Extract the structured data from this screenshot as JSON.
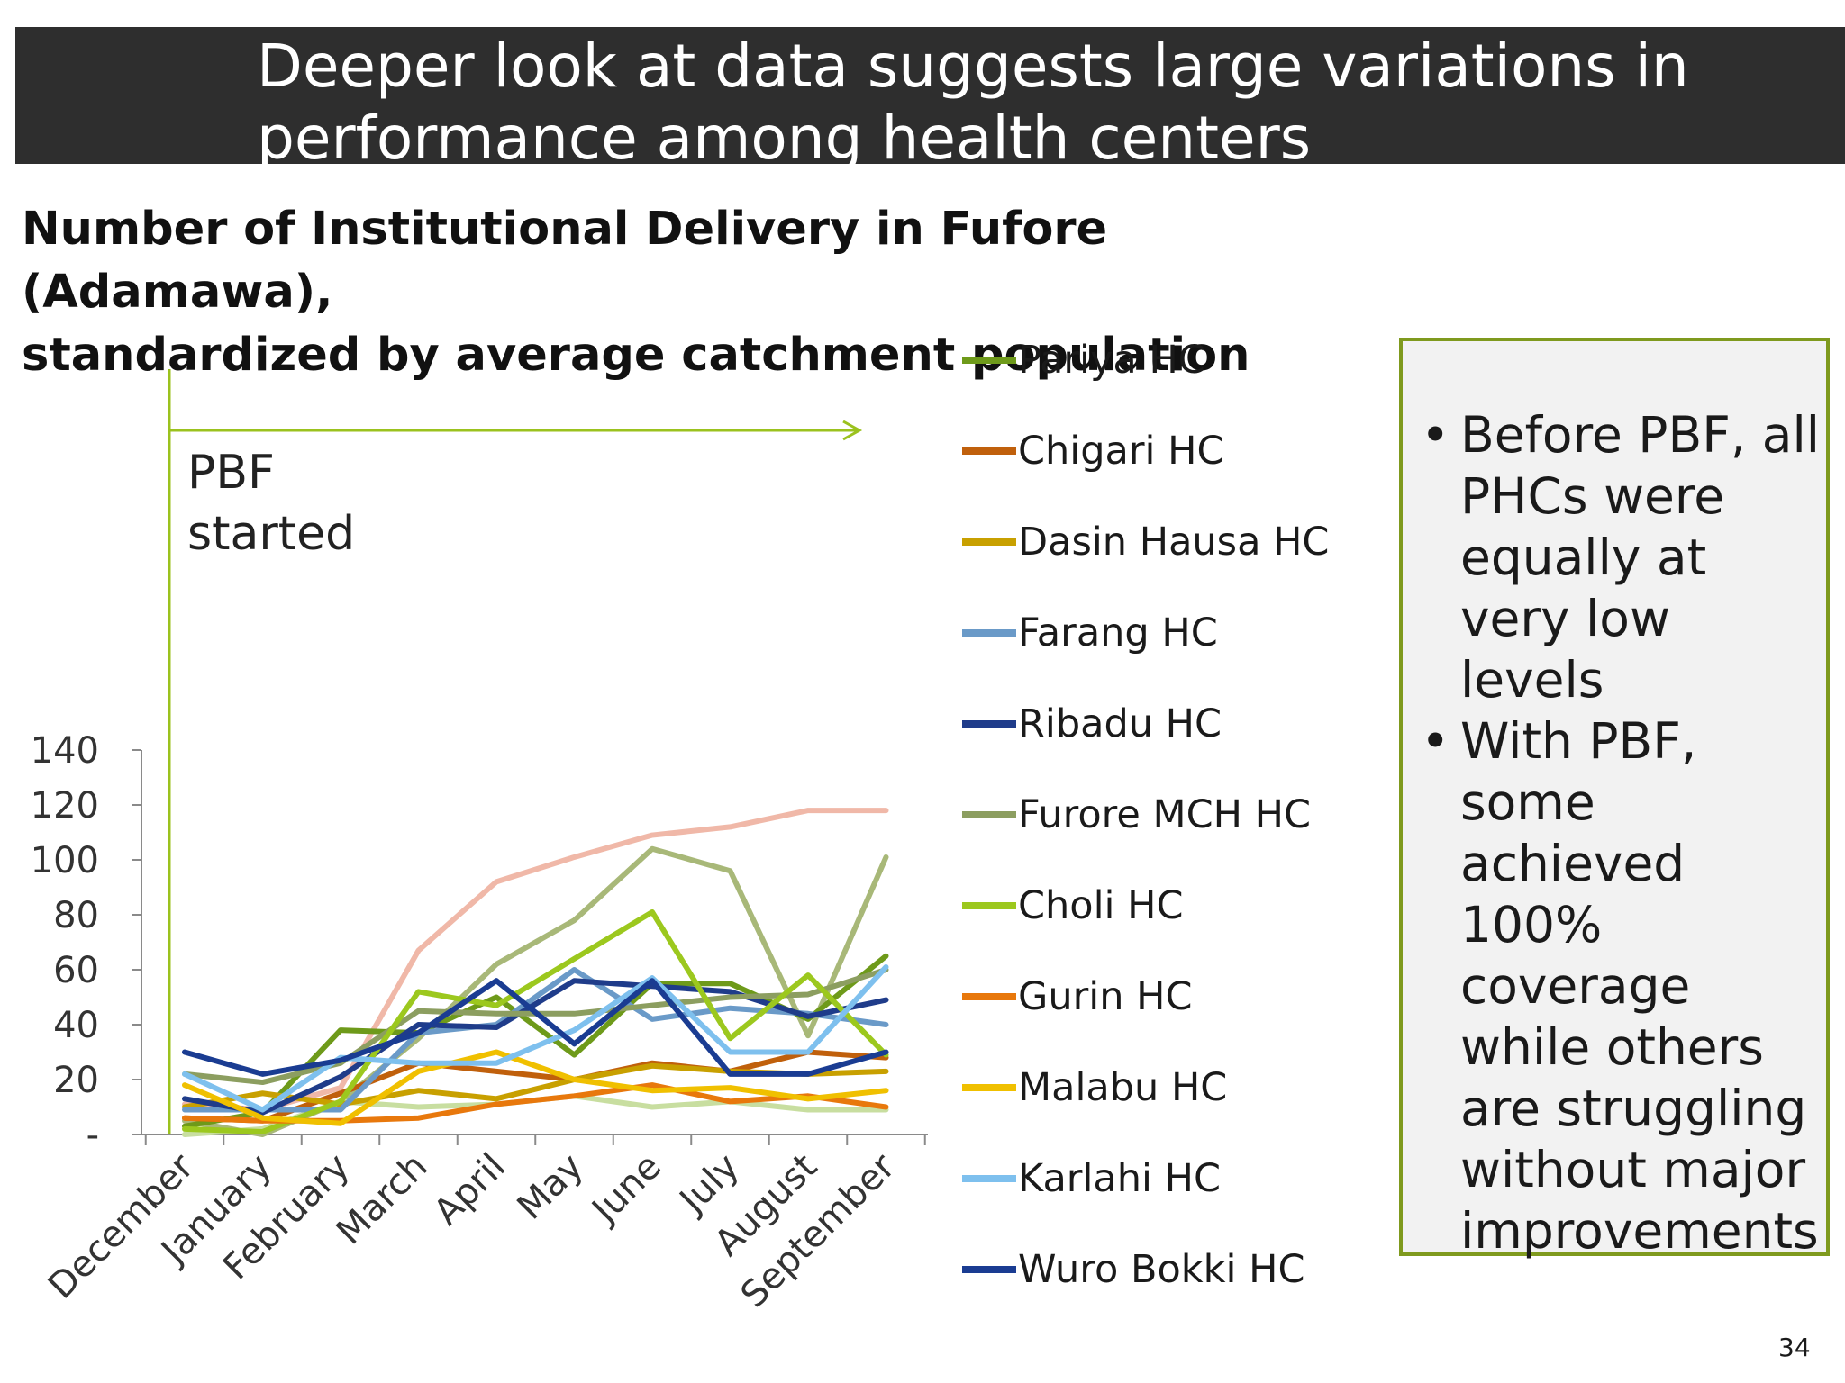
{
  "slide": {
    "title": "Deeper look at data suggests large variations in performance among health centers",
    "subtitle_line1": "Number of Institutional Delivery in Fufore (Adamawa),",
    "subtitle_line2": "standardized by average catchment population",
    "page_number": "34"
  },
  "note": {
    "bullets": [
      "Before PBF, all PHCs were equally at very low levels",
      "With PBF, some achieved 100% coverage while others are struggling without major improvements"
    ],
    "bullet_glyph": "•",
    "border_color": "#7f9a1e"
  },
  "chart_data": {
    "type": "line",
    "categories": [
      "December",
      "January",
      "February",
      "March",
      "April",
      "May",
      "June",
      "July",
      "August",
      "September"
    ],
    "ylim": [
      0,
      140
    ],
    "y_ticks": [
      "-",
      "20",
      "40",
      "60",
      "80",
      "100",
      "120",
      "140"
    ],
    "grid": false,
    "legend_position": "right",
    "annotation": {
      "line1": "PBF",
      "line2": "started",
      "color": "#9bc21e"
    },
    "series": [
      {
        "name": "Pariya HC",
        "color": "#6e9a1a",
        "values": [
          3,
          8,
          38,
          37,
          50,
          29,
          55,
          55,
          42,
          65
        ]
      },
      {
        "name": "Chigari HC",
        "color": "#c0600c",
        "values": [
          6,
          5,
          15,
          26,
          23,
          20,
          26,
          23,
          30,
          28
        ]
      },
      {
        "name": "Dasin Hausa HC",
        "color": "#c8a000",
        "values": [
          10,
          15,
          11,
          16,
          13,
          20,
          25,
          23,
          22,
          23
        ]
      },
      {
        "name": "Farang HC",
        "color": "#6a9ac8",
        "values": [
          9,
          9,
          9,
          37,
          40,
          60,
          42,
          46,
          44,
          40
        ]
      },
      {
        "name": "Ribadu HC",
        "color": "#1f3c8a",
        "values": [
          13,
          8,
          21,
          40,
          39,
          56,
          54,
          52,
          43,
          49
        ]
      },
      {
        "name": "Furore MCH HC",
        "color": "#8c9e60",
        "values": [
          22,
          19,
          26,
          45,
          44,
          44,
          47,
          50,
          51,
          60
        ]
      },
      {
        "name": "Choli HC",
        "color": "#9cc81e",
        "values": [
          2,
          1,
          12,
          52,
          47,
          64,
          81,
          35,
          58,
          29
        ]
      },
      {
        "name": "Gurin HC",
        "color": "#e8780c",
        "values": [
          6,
          5,
          5,
          6,
          11,
          14,
          18,
          12,
          14,
          10
        ]
      },
      {
        "name": "Malabu HC",
        "color": "#f0c000",
        "values": [
          18,
          6,
          4,
          23,
          30,
          20,
          16,
          17,
          13,
          16
        ]
      },
      {
        "name": "Karlahi HC",
        "color": "#7ec0ee",
        "values": [
          22,
          9,
          28,
          26,
          26,
          38,
          57,
          30,
          30,
          61
        ]
      },
      {
        "name": "Wuro Bokki HC",
        "color": "#1a3c92",
        "values": [
          30,
          22,
          27,
          37,
          56,
          33,
          56,
          22,
          22,
          30
        ]
      },
      {
        "color": "#a8b878",
        "values": [
          5,
          0,
          12,
          35,
          62,
          78,
          104,
          96,
          36,
          101
        ]
      },
      {
        "color": "#f0b8a8",
        "values": [
          11,
          9,
          17,
          67,
          92,
          101,
          109,
          112,
          118,
          118
        ]
      },
      {
        "color": "#c8dea0",
        "values": [
          0,
          2,
          12,
          10,
          11,
          14,
          10,
          12,
          9,
          9
        ]
      }
    ]
  }
}
